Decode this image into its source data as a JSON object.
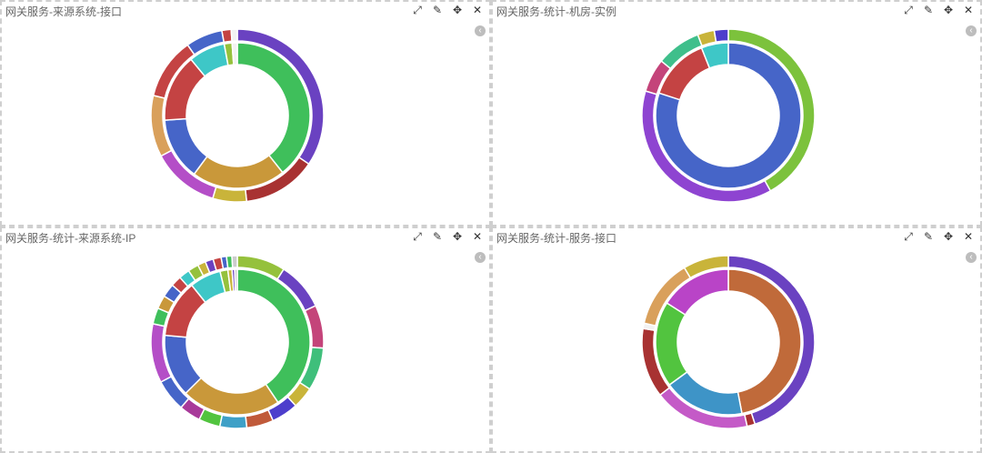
{
  "panels": [
    {
      "title": "网关服务-来源系统-接口",
      "tools": [
        "expand-icon",
        "edit-icon",
        "move-icon",
        "close-icon"
      ],
      "chart_data": {
        "type": "pie",
        "inner": {
          "values": [
            34,
            18,
            12,
            13,
            7,
            1.5,
            1
          ],
          "colors": [
            "#3fbf5b",
            "#c9983a",
            "#4665c8",
            "#c44343",
            "#3ec7c7",
            "#95c13c",
            "#f2f2f2"
          ]
        },
        "outer": {
          "values": [
            30,
            12,
            5.5,
            11,
            10,
            10,
            6,
            1.5,
            1
          ],
          "colors": [
            "#6a42c1",
            "#a83232",
            "#c9b43a",
            "#b44ec7",
            "#d9a05b",
            "#c44343",
            "#4665c8",
            "#c44343",
            "#f2f2f2"
          ]
        }
      }
    },
    {
      "title": "网关服务-统计-机房-实例",
      "tools": [
        "expand-icon",
        "edit-icon",
        "move-icon",
        "close-icon"
      ],
      "chart_data": {
        "type": "pie",
        "inner": {
          "values": [
            80,
            14,
            6
          ],
          "colors": [
            "#4665c8",
            "#c44343",
            "#3ec7c7"
          ]
        },
        "outer": {
          "values": [
            40,
            36,
            6,
            8,
            3,
            2.5
          ],
          "colors": [
            "#7cc23c",
            "#8e44d1",
            "#c4447a",
            "#3fbf8b",
            "#c9b43a",
            "#4d3ecc"
          ]
        }
      }
    },
    {
      "title": "网关服务-统计-来源系统-IP",
      "tools": [
        "expand-icon",
        "edit-icon",
        "move-icon",
        "close-icon"
      ],
      "chart_data": {
        "type": "pie",
        "inner": {
          "values": [
            35,
            19,
            12,
            11,
            6,
            1.5,
            0.8,
            0.5,
            0.5
          ],
          "colors": [
            "#3fbf5b",
            "#c9983a",
            "#4665c8",
            "#c44343",
            "#3ec7c7",
            "#95c13c",
            "#c9b43a",
            "#6a42c1",
            "#cccccc"
          ]
        },
        "outer": {
          "values": [
            9,
            9,
            8,
            8,
            4,
            5,
            5,
            5,
            4,
            4,
            6,
            11,
            3,
            2.5,
            2.5,
            2,
            2,
            2,
            1.5,
            1.5,
            1.5,
            1,
            1,
            1
          ],
          "colors": [
            "#95c13c",
            "#6a42c1",
            "#c4447a",
            "#3fbf7b",
            "#c9b43a",
            "#4d3ecc",
            "#c05a3a",
            "#3ea0c7",
            "#52c43f",
            "#a83a9a",
            "#4665c8",
            "#b44ec7",
            "#3fbf5b",
            "#c9983a",
            "#4665c8",
            "#c44343",
            "#3ec7c7",
            "#95c13c",
            "#c9b43a",
            "#6a42c1",
            "#c44343",
            "#4665c8",
            "#3fbf5b",
            "#cccccc"
          ]
        }
      }
    },
    {
      "title": "网关服务-统计-服务-接口",
      "tools": [
        "expand-icon",
        "edit-icon",
        "move-icon",
        "close-icon"
      ],
      "chart_data": {
        "type": "pie",
        "inner": {
          "values": [
            47,
            18,
            19,
            16
          ],
          "colors": [
            "#c06a3a",
            "#3e94c7",
            "#52c43f",
            "#b944c7"
          ]
        },
        "outer": {
          "values": [
            45,
            1.5,
            18,
            13,
            1,
            13,
            8.5
          ],
          "colors": [
            "#6a42c1",
            "#a83232",
            "#c45ac7",
            "#a83232",
            "#f2f2f2",
            "#d9a05b",
            "#c9b43a"
          ]
        }
      }
    }
  ]
}
